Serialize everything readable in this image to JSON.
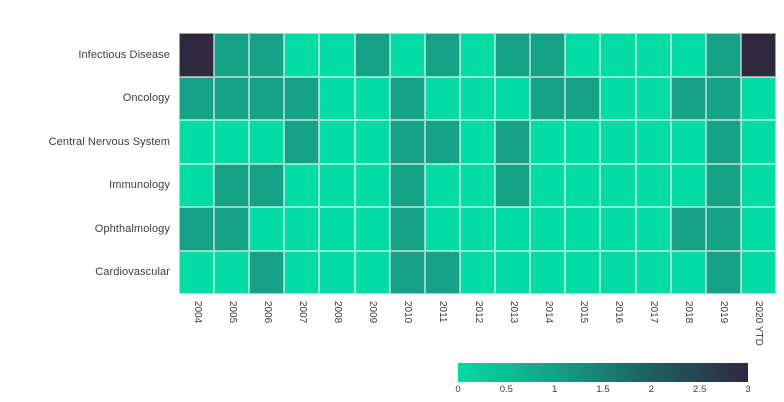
{
  "chart_data": {
    "type": "heatmap",
    "title": "",
    "rows": [
      "Infectious Disease",
      "Oncology",
      "Central Nervous System",
      "Immunology",
      "Ophthalmology",
      "Cardiovascular"
    ],
    "columns": [
      "2004",
      "2005",
      "2006",
      "2007",
      "2008",
      "2009",
      "2010",
      "2011",
      "2012",
      "2013",
      "2014",
      "2015",
      "2016",
      "2017",
      "2018",
      "2019",
      "2020 YTD"
    ],
    "values": [
      [
        3,
        1,
        1,
        0,
        0,
        1,
        0,
        1,
        0,
        1,
        1,
        0,
        0,
        0,
        0,
        1,
        3
      ],
      [
        1,
        1,
        1,
        1,
        0,
        0,
        1,
        0,
        0,
        0,
        1,
        1,
        0,
        0,
        1,
        1,
        0
      ],
      [
        0,
        0,
        0,
        1,
        0,
        0,
        1,
        1,
        0,
        1,
        0,
        0,
        0,
        0,
        0,
        1,
        0
      ],
      [
        0,
        1,
        1,
        0,
        0,
        0,
        1,
        0,
        0,
        1,
        0,
        0,
        0,
        0,
        0,
        1,
        0
      ],
      [
        1,
        1,
        0,
        0,
        0,
        0,
        1,
        0,
        0,
        0,
        0,
        0,
        0,
        0,
        1,
        1,
        0
      ],
      [
        0,
        0,
        1,
        0,
        0,
        0,
        1,
        1,
        0,
        0,
        0,
        0,
        0,
        0,
        0,
        1,
        0
      ]
    ],
    "legend": {
      "min": 0,
      "max": 3,
      "ticks": [
        "0",
        "0.5",
        "1",
        "1.5",
        "2",
        "2.5",
        "3"
      ],
      "position": "bottom-right",
      "orientation": "horizontal"
    },
    "color_stops": [
      {
        "value": 0,
        "color": "#02DBA4"
      },
      {
        "value": 1,
        "color": "#15A186"
      },
      {
        "value": 2,
        "color": "#1E5E62"
      },
      {
        "value": 3,
        "color": "#2E293E"
      }
    ],
    "grid_line_color": "rgba(255,255,255,0.55)",
    "label_color": "#3d3d3d",
    "axis": {
      "x_label_rotation": 90,
      "grid": "off"
    }
  }
}
